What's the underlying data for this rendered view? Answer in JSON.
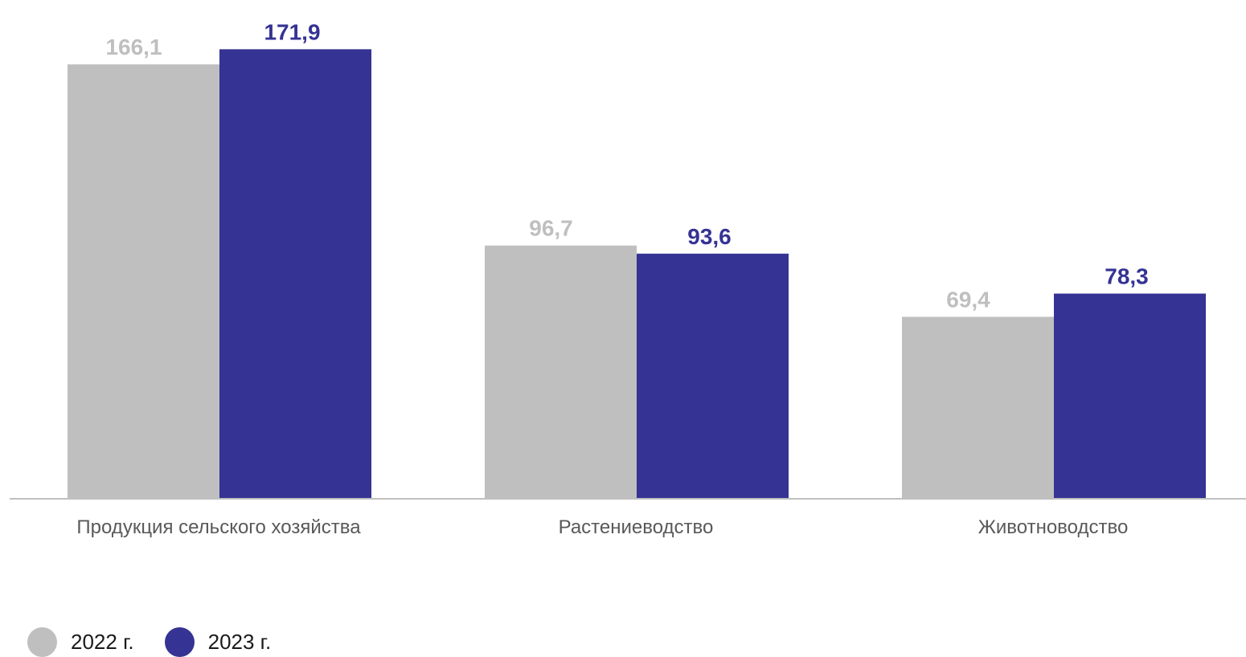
{
  "chart_data": {
    "type": "bar",
    "categories": [
      "Продукция сельского хозяйства",
      "Растениеводство",
      "Животноводство"
    ],
    "series": [
      {
        "name": "2022 г.",
        "values": [
          166.1,
          96.7,
          69.4
        ],
        "labels": [
          "166,1",
          "96,7",
          "69,4"
        ],
        "color": "#bfbfbf"
      },
      {
        "name": "2023 г.",
        "values": [
          171.9,
          93.6,
          78.3
        ],
        "labels": [
          "171,9",
          "93,6",
          "78,3"
        ],
        "color": "#353393"
      }
    ],
    "ylim": [
      0,
      175
    ],
    "grid": false,
    "legend_position": "bottom-left",
    "axis_color": "#bfbfbf",
    "category_label_color": "#595959"
  }
}
